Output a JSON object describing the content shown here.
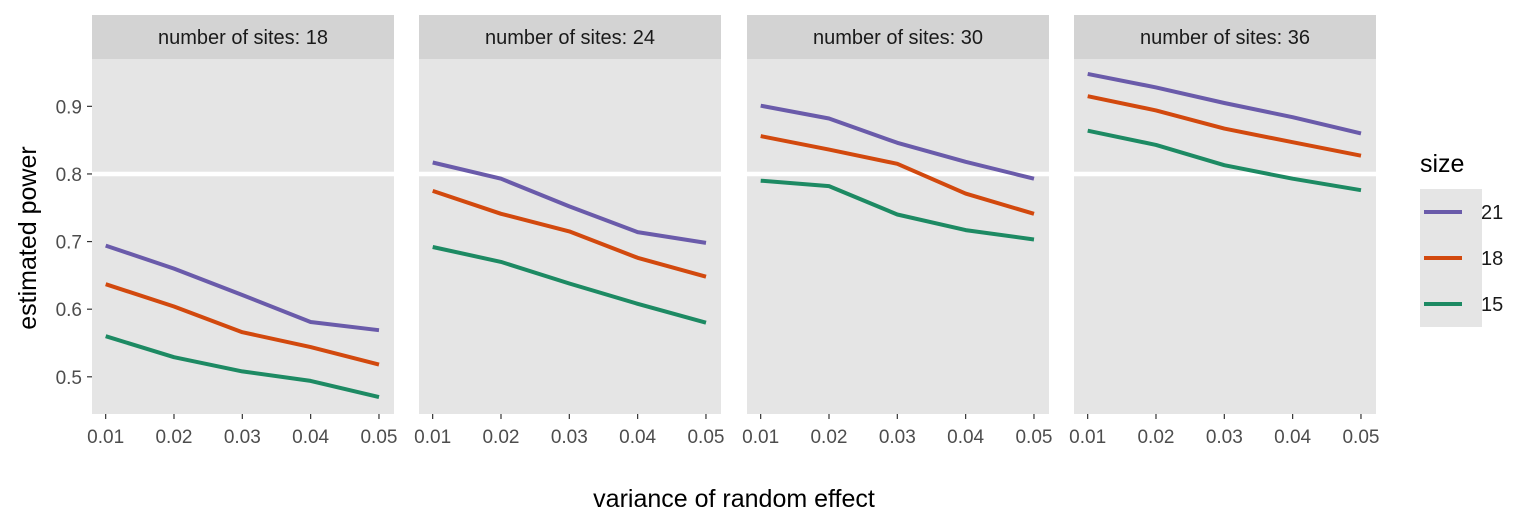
{
  "chart_data": {
    "type": "line",
    "facet_label": "number of sites",
    "facets": [
      {
        "label": "number of sites: 18",
        "series": [
          {
            "name": "21",
            "values": [
              0.694,
              0.66,
              0.621,
              0.581,
              0.569
            ]
          },
          {
            "name": "18",
            "values": [
              0.637,
              0.604,
              0.566,
              0.544,
              0.518
            ]
          },
          {
            "name": "15",
            "values": [
              0.56,
              0.529,
              0.508,
              0.494,
              0.47
            ]
          }
        ]
      },
      {
        "label": "number of sites: 24",
        "series": [
          {
            "name": "21",
            "values": [
              0.817,
              0.793,
              0.752,
              0.714,
              0.698
            ]
          },
          {
            "name": "18",
            "values": [
              0.775,
              0.741,
              0.715,
              0.676,
              0.648
            ]
          },
          {
            "name": "15",
            "values": [
              0.692,
              0.67,
              0.638,
              0.608,
              0.58
            ]
          }
        ]
      },
      {
        "label": "number of sites: 30",
        "series": [
          {
            "name": "21",
            "values": [
              0.901,
              0.882,
              0.846,
              0.818,
              0.793
            ]
          },
          {
            "name": "18",
            "values": [
              0.856,
              0.836,
              0.815,
              0.771,
              0.741
            ]
          },
          {
            "name": "15",
            "values": [
              0.79,
              0.782,
              0.74,
              0.717,
              0.703
            ]
          }
        ]
      },
      {
        "label": "number of sites: 36",
        "series": [
          {
            "name": "21",
            "values": [
              0.948,
              0.928,
              0.905,
              0.884,
              0.86
            ]
          },
          {
            "name": "18",
            "values": [
              0.915,
              0.894,
              0.867,
              0.847,
              0.827
            ]
          },
          {
            "name": "15",
            "values": [
              0.864,
              0.843,
              0.813,
              0.793,
              0.776
            ]
          }
        ]
      }
    ],
    "x": [
      "0.01",
      "0.02",
      "0.03",
      "0.04",
      "0.05"
    ],
    "x_numeric": [
      0.01,
      0.02,
      0.03,
      0.04,
      0.05
    ],
    "xlabel": "variance of random effect",
    "ylabel": "estimated power",
    "yticks": [
      0.5,
      0.6,
      0.7,
      0.8,
      0.9
    ],
    "ytick_labels": [
      "0.5",
      "0.6",
      "0.7",
      "0.8",
      "0.9"
    ],
    "ylim": [
      0.445,
      0.97
    ],
    "xlim": [
      0.008,
      0.0522
    ],
    "highlight_y": 0.8,
    "grid": false,
    "legend": {
      "title": "size",
      "placement": "right",
      "entries": [
        "21",
        "18",
        "15"
      ]
    },
    "colors": {
      "21": "#6A5BAA",
      "18": "#D2490E",
      "15": "#1D8A63",
      "panel_background": "#E5E5E5",
      "strip_background": "#D3D3D3",
      "highlight_line": "#FFFFFF"
    }
  }
}
